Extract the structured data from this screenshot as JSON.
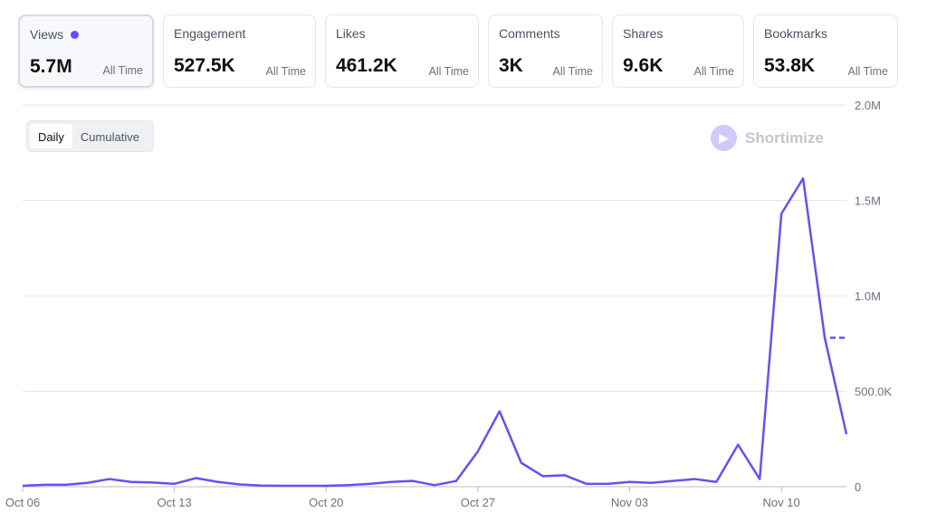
{
  "cards": [
    {
      "label": "Views",
      "value": "5.7M",
      "period": "All Time"
    },
    {
      "label": "Engagement",
      "value": "527.5K",
      "period": "All Time"
    },
    {
      "label": "Likes",
      "value": "461.2K",
      "period": "All Time"
    },
    {
      "label": "Comments",
      "value": "3K",
      "period": "All Time"
    },
    {
      "label": "Shares",
      "value": "9.6K",
      "period": "All Time"
    },
    {
      "label": "Bookmarks",
      "value": "53.8K",
      "period": "All Time"
    }
  ],
  "toggle": {
    "daily": "Daily",
    "cumulative": "Cumulative"
  },
  "brand": {
    "name": "Shortimize"
  },
  "colors": {
    "line": "#6a4ff0",
    "grid": "#e3e6ee"
  },
  "chart_data": {
    "type": "line",
    "title": "Views",
    "ylim": [
      0,
      2000000
    ],
    "yticks": [
      {
        "v": 0,
        "label": "0"
      },
      {
        "v": 500000,
        "label": "500.0K"
      },
      {
        "v": 1000000,
        "label": "1.0M"
      },
      {
        "v": 1500000,
        "label": "1.5M"
      },
      {
        "v": 2000000,
        "label": "2.0M"
      }
    ],
    "xticks": [
      {
        "i": 0,
        "label": "Oct 06"
      },
      {
        "i": 7,
        "label": "Oct 13"
      },
      {
        "i": 14,
        "label": "Oct 20"
      },
      {
        "i": 21,
        "label": "Oct 27"
      },
      {
        "i": 28,
        "label": "Nov 03"
      },
      {
        "i": 35,
        "label": "Nov 10"
      }
    ],
    "start": "Oct 06",
    "values": [
      5000,
      10000,
      10000,
      20000,
      40000,
      25000,
      22000,
      15000,
      45000,
      25000,
      12000,
      6000,
      5000,
      5000,
      5000,
      8000,
      15000,
      25000,
      30000,
      8000,
      30000,
      185000,
      395000,
      125000,
      55000,
      60000,
      15000,
      15000,
      25000,
      20000,
      30000,
      40000,
      25000,
      220000,
      40000,
      1430000,
      1615000,
      780000,
      275000
    ],
    "reference_marker": 780000
  }
}
